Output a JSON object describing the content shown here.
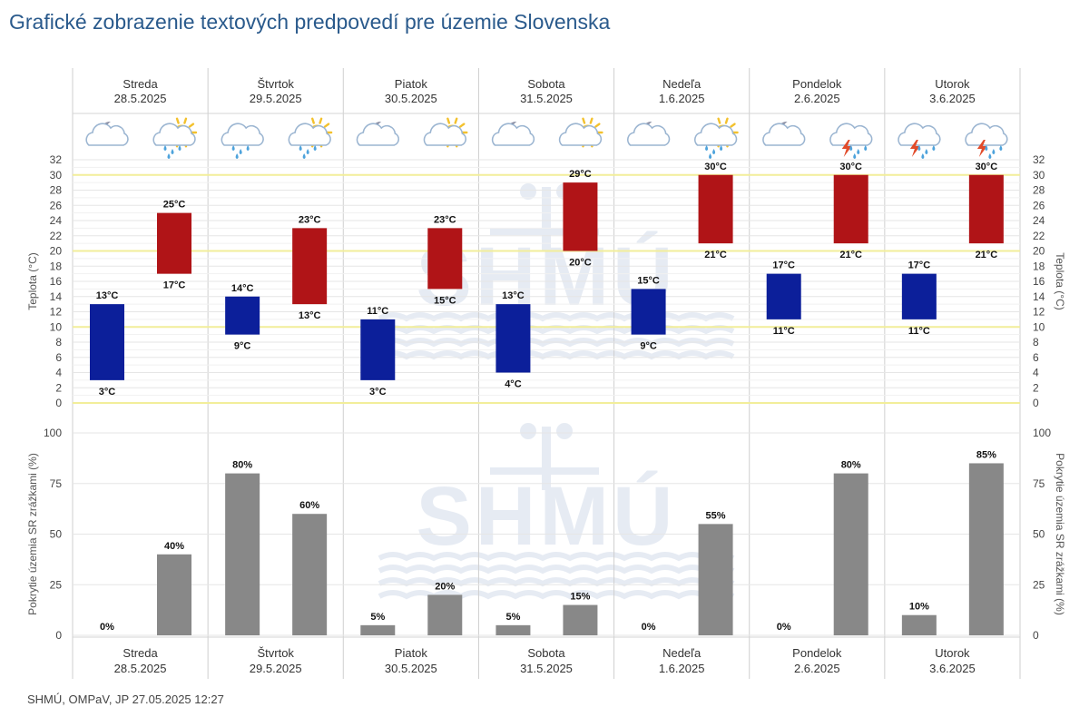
{
  "title": "Grafické zobrazenie textových predpovedí pre územie Slovenska",
  "footer": "SHMÚ, OMPaV, JP 27.05.2025 12:27",
  "watermark": "SHMÚ",
  "colors": {
    "night_bar": "#0c1f9a",
    "day_bar": "#b01417",
    "precip_bar": "#888888",
    "highlight_line": "#f2ee9a",
    "title": "#2a5a8c"
  },
  "chart_data": [
    {
      "type": "bar",
      "chart": "temperature",
      "categories": [
        {
          "day": "Streda",
          "date": "28.5.2025"
        },
        {
          "day": "Štvrtok",
          "date": "29.5.2025"
        },
        {
          "day": "Piatok",
          "date": "30.5.2025"
        },
        {
          "day": "Sobota",
          "date": "31.5.2025"
        },
        {
          "day": "Nedeľa",
          "date": "1.6.2025"
        },
        {
          "day": "Pondelok",
          "date": "2.6.2025"
        },
        {
          "day": "Utorok",
          "date": "3.6.2025"
        }
      ],
      "series": [
        {
          "period": "night",
          "min": [
            3,
            9,
            3,
            4,
            9,
            11,
            11
          ],
          "max": [
            13,
            14,
            11,
            13,
            15,
            17,
            17
          ]
        },
        {
          "period": "day",
          "min": [
            17,
            13,
            15,
            20,
            21,
            21,
            21
          ],
          "max": [
            25,
            23,
            23,
            29,
            30,
            30,
            30
          ]
        }
      ],
      "unit_suffix": "°C",
      "ylabel": "Teplota (°C)",
      "ylim": [
        0,
        32
      ],
      "yticks": [
        0,
        2,
        4,
        6,
        8,
        10,
        12,
        14,
        16,
        18,
        20,
        22,
        24,
        26,
        28,
        30,
        32
      ],
      "highlight_lines": [
        0,
        10,
        20,
        30
      ],
      "icons": [
        [
          "moon-cloud-icon",
          "sun-cloud-rain-icon"
        ],
        [
          "cloud-rain-icon",
          "sun-cloud-rain-icon"
        ],
        [
          "moon-cloud-icon",
          "sun-cloud-icon"
        ],
        [
          "moon-cloud-icon",
          "sun-cloud-icon"
        ],
        [
          "moon-cloud-icon",
          "sun-cloud-rain-icon"
        ],
        [
          "moon-cloud-icon",
          "thunderstorm-icon"
        ],
        [
          "thunderstorm-icon",
          "thunderstorm-icon"
        ]
      ],
      "grid": true
    },
    {
      "type": "bar",
      "chart": "precipitation",
      "categories": [
        {
          "day": "Streda",
          "date": "28.5.2025"
        },
        {
          "day": "Štvrtok",
          "date": "29.5.2025"
        },
        {
          "day": "Piatok",
          "date": "30.5.2025"
        },
        {
          "day": "Sobota",
          "date": "31.5.2025"
        },
        {
          "day": "Nedeľa",
          "date": "1.6.2025"
        },
        {
          "day": "Pondelok",
          "date": "2.6.2025"
        },
        {
          "day": "Utorok",
          "date": "3.6.2025"
        }
      ],
      "series": [
        {
          "period": "night",
          "values": [
            0,
            80,
            5,
            5,
            0,
            0,
            10
          ]
        },
        {
          "period": "day",
          "values": [
            40,
            60,
            20,
            15,
            55,
            80,
            85
          ]
        }
      ],
      "unit_suffix": "%",
      "ylabel": "Pokrytie územia SR zrážkami (%)",
      "ylim": [
        0,
        100
      ],
      "yticks": [
        0,
        25,
        50,
        75,
        100
      ],
      "grid": true
    }
  ]
}
